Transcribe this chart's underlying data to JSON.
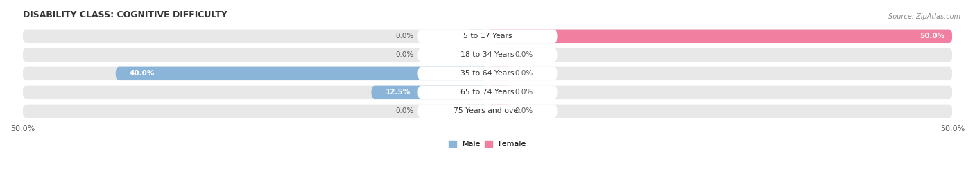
{
  "title": "DISABILITY CLASS: COGNITIVE DIFFICULTY",
  "source": "Source: ZipAtlas.com",
  "categories": [
    "5 to 17 Years",
    "18 to 34 Years",
    "35 to 64 Years",
    "65 to 74 Years",
    "75 Years and over"
  ],
  "male_values": [
    0.0,
    0.0,
    40.0,
    12.5,
    0.0
  ],
  "female_values": [
    50.0,
    0.0,
    0.0,
    0.0,
    0.0
  ],
  "male_color": "#8ab4d8",
  "female_color": "#f07fa0",
  "female_color_light": "#f4afc0",
  "row_bg_color": "#e4e4e4",
  "row_bg_color2": "#eeeeee",
  "x_min": -50.0,
  "x_max": 50.0,
  "x_tick_labels": [
    "50.0%",
    "50.0%"
  ],
  "title_fontsize": 9,
  "label_fontsize": 8
}
